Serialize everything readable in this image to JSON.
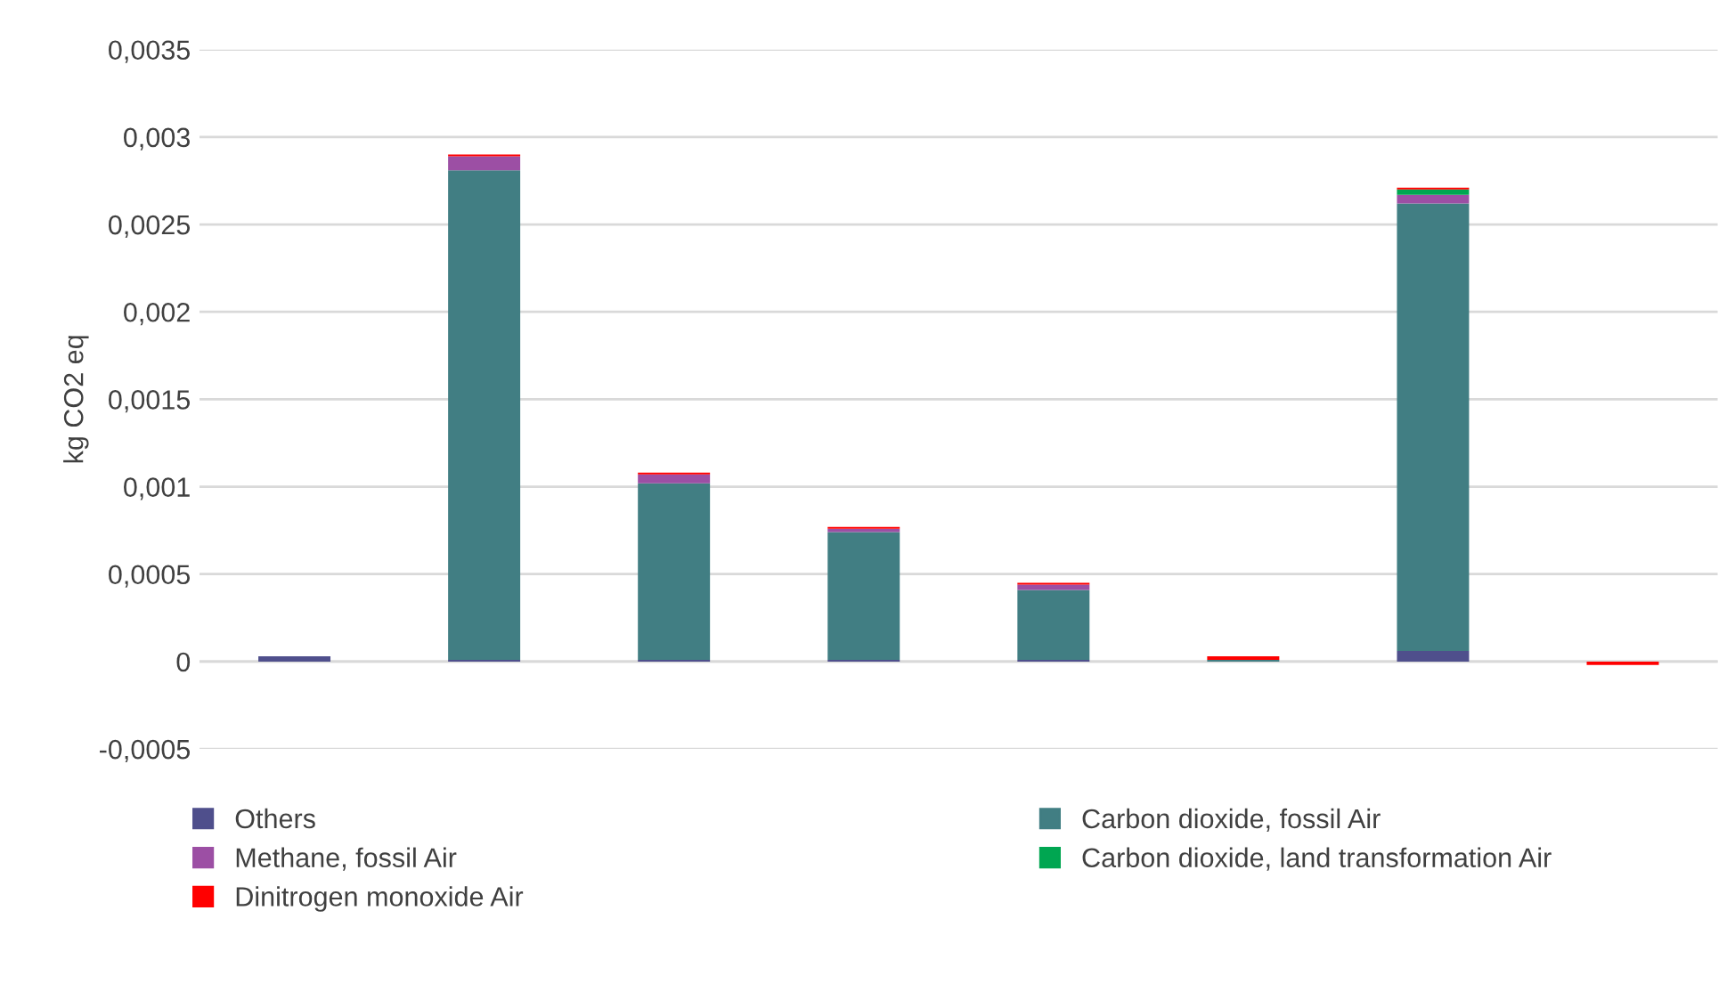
{
  "chart_data": {
    "type": "bar",
    "stacked": true,
    "ylabel": "kg CO2 eq",
    "categories": [
      null,
      null,
      null,
      null,
      null,
      null,
      null,
      null
    ],
    "series": [
      {
        "name": "Others",
        "color": "#4f4f8c",
        "values": [
          3e-05,
          1e-05,
          1e-05,
          1e-05,
          1e-05,
          0,
          6e-05,
          0
        ]
      },
      {
        "name": "Carbon dioxide, fossil Air",
        "color": "#417e83",
        "values": [
          0,
          0.0028,
          0.00101,
          0.00073,
          0.0004,
          1e-05,
          0.00256,
          0
        ]
      },
      {
        "name": "Methane, fossil Air",
        "color": "#9c4fa4",
        "values": [
          0,
          8e-05,
          5e-05,
          2e-05,
          3e-05,
          0,
          5e-05,
          0
        ]
      },
      {
        "name": "Carbon dioxide, land transformation Air",
        "color": "#00a651",
        "values": [
          0,
          0,
          0,
          0,
          0,
          0,
          3e-05,
          0
        ]
      },
      {
        "name": "Dinitrogen monoxide Air",
        "color": "#ff0000",
        "values": [
          0,
          1e-05,
          1e-05,
          1e-05,
          1e-05,
          2e-05,
          1e-05,
          -2e-05
        ]
      }
    ],
    "ylim": [
      -0.0005,
      0.0035
    ],
    "yticks": [
      {
        "value": -0.0005,
        "label": "-0,0005"
      },
      {
        "value": 0,
        "label": "0"
      },
      {
        "value": 0.0005,
        "label": "0,0005"
      },
      {
        "value": 0.001,
        "label": "0,001"
      },
      {
        "value": 0.0015,
        "label": "0,0015"
      },
      {
        "value": 0.002,
        "label": "0,002"
      },
      {
        "value": 0.0025,
        "label": "0,0025"
      },
      {
        "value": 0.003,
        "label": "0,003"
      },
      {
        "value": 0.0035,
        "label": "0,0035"
      }
    ],
    "grid": "y",
    "legend": "bottom",
    "tick_labels": "y"
  }
}
